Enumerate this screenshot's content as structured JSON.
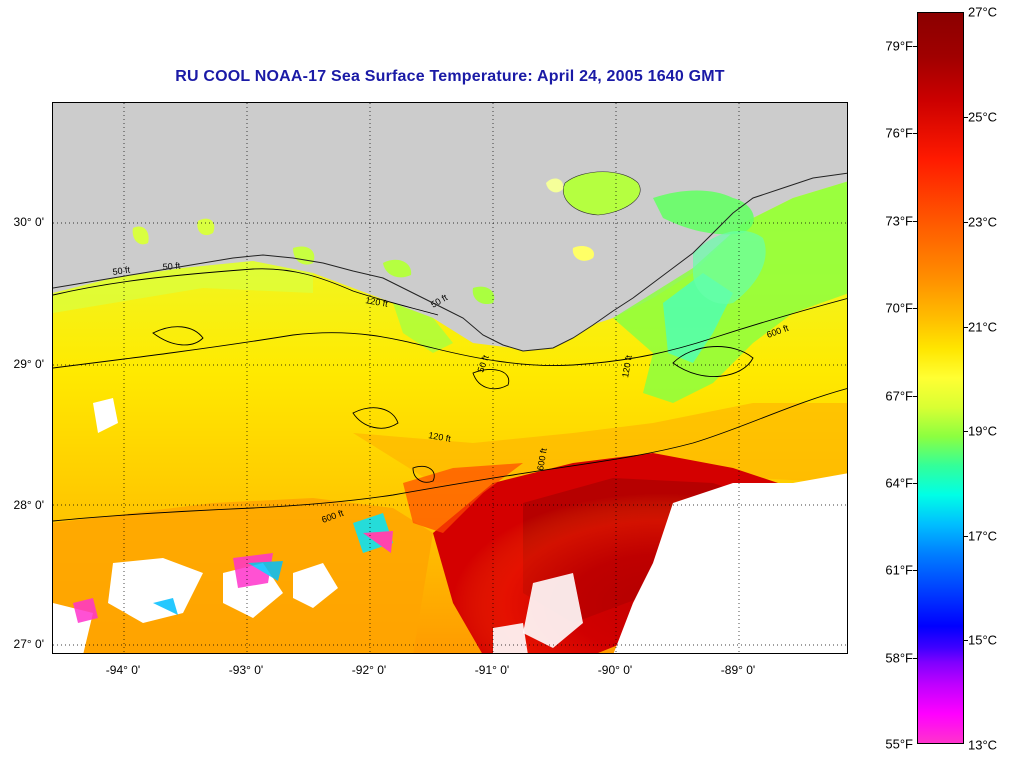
{
  "title": "RU COOL  NOAA-17  Sea Surface Temperature:  April 24, 2005 1640 GMT",
  "map": {
    "latitude_labels": [
      "30° 0'",
      "29° 0'",
      "28° 0'",
      "27° 0'"
    ],
    "longitude_labels": [
      "-94° 0'",
      "-93° 0'",
      "-92° 0'",
      "-91° 0'",
      "-90° 0'",
      "-89° 0'"
    ],
    "contour_labels": [
      "50 ft",
      "50 ft",
      "120 ft",
      "50 ft",
      "120 ft",
      "600 ft",
      "600 ft",
      "50 ft",
      "120 ft",
      "600 ft"
    ],
    "land_color": "#cccccc",
    "cloud_color": "#ffffff"
  },
  "colorbar": {
    "fahrenheit_labels": [
      "79°F",
      "76°F",
      "73°F",
      "70°F",
      "67°F",
      "64°F",
      "61°F",
      "58°F",
      "55°F"
    ],
    "celsius_labels": [
      "27°C",
      "25°C",
      "23°C",
      "21°C",
      "19°C",
      "17°C",
      "15°C",
      "13°C"
    ],
    "range_celsius": [
      13,
      27
    ],
    "range_fahrenheit": [
      55,
      80
    ]
  }
}
